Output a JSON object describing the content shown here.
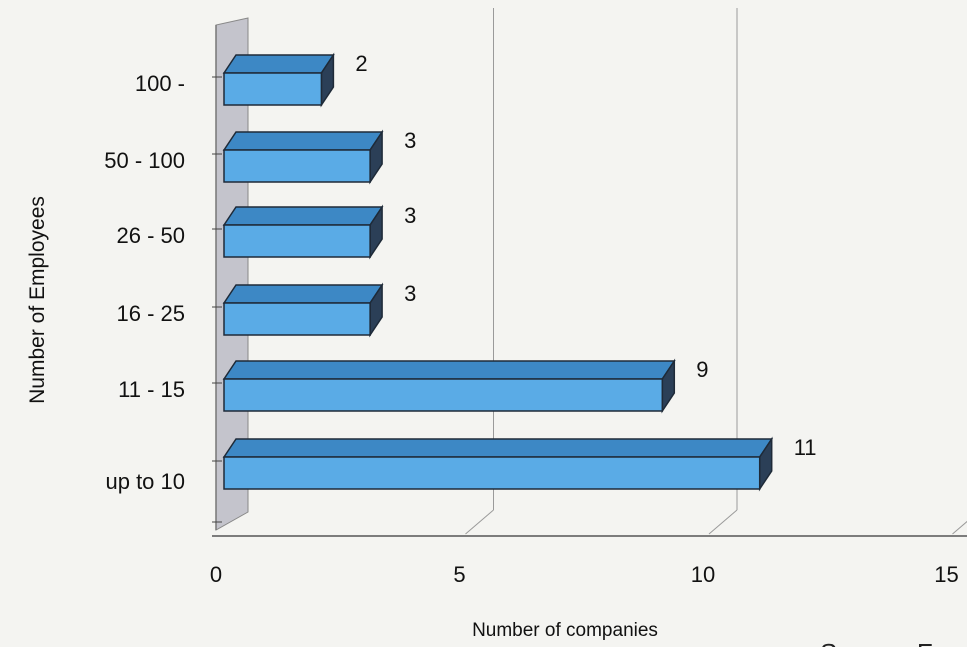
{
  "chart_data": {
    "type": "bar",
    "orientation": "horizontal",
    "three_d": true,
    "categories": [
      "up to 10",
      "11 - 15",
      "16 - 25",
      "26 - 50",
      "50 - 100",
      "100 -"
    ],
    "values": [
      11,
      9,
      3,
      3,
      3,
      2
    ],
    "data_labels": [
      "11",
      "9",
      "3",
      "3",
      "3",
      "2"
    ],
    "xlabel": "Number of companies",
    "ylabel": "Number of Employees",
    "xlim": [
      0,
      15
    ],
    "xticks": [
      "0",
      "5",
      "10",
      "15"
    ],
    "grid": "vertical",
    "legend": "none",
    "source_text": "Source: F",
    "colors": {
      "bar_front": "#5aabe6",
      "bar_top": "#3d88c5",
      "bar_side": "#2b3f57",
      "bar_outline": "#1e2a38",
      "back_wall": "#c4c4cc",
      "gridline": "#9a9a9a",
      "background": "#f4f4f1"
    }
  }
}
